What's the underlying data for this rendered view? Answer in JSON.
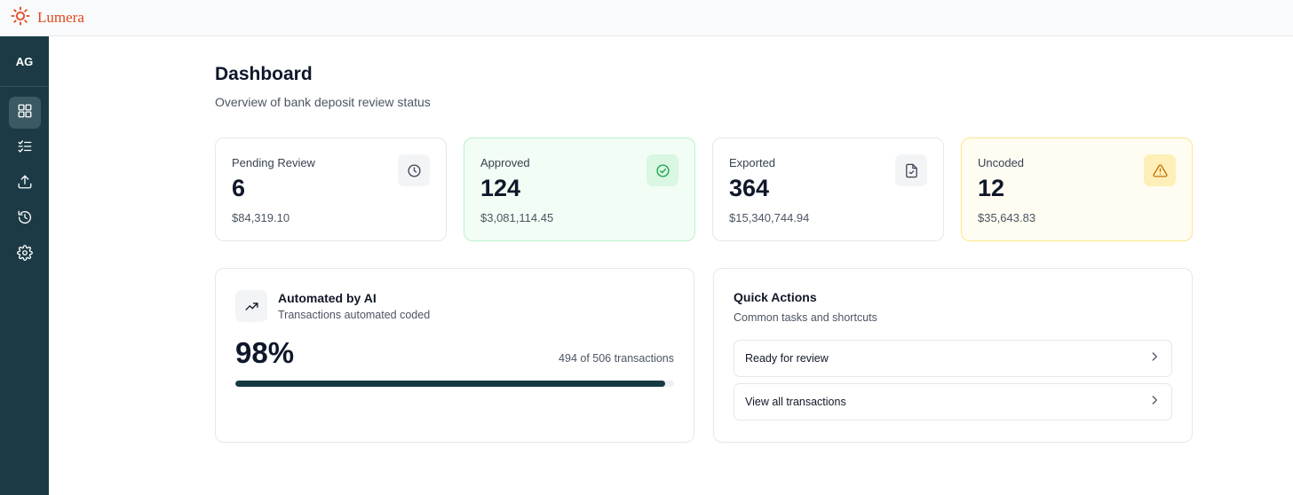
{
  "app": {
    "name": "Lumera",
    "brand_color": "#e0481f",
    "logo_icon": "sun-icon"
  },
  "sidebar": {
    "user_initials": "AG",
    "bg_color": "#1b3a45",
    "items": [
      {
        "icon": "dashboard-icon",
        "active": true
      },
      {
        "icon": "checklist-icon",
        "active": false
      },
      {
        "icon": "upload-icon",
        "active": false
      },
      {
        "icon": "history-icon",
        "active": false
      },
      {
        "icon": "gear-icon",
        "active": false
      }
    ]
  },
  "page": {
    "title": "Dashboard",
    "subtitle": "Overview of bank deposit review status"
  },
  "stats": [
    {
      "label": "Pending Review",
      "value": "6",
      "amount": "$84,319.10",
      "icon": "clock-icon",
      "accent": "#f3f4f6"
    },
    {
      "label": "Approved",
      "value": "124",
      "amount": "$3,081,114.45",
      "icon": "check-circle-icon",
      "accent": "#16a34a"
    },
    {
      "label": "Exported",
      "value": "364",
      "amount": "$15,340,744.94",
      "icon": "file-check-icon",
      "accent": "#6b7280"
    },
    {
      "label": "Uncoded",
      "value": "12",
      "amount": "$35,643.83",
      "icon": "warning-icon",
      "accent": "#d97706"
    }
  ],
  "automation": {
    "title": "Automated by AI",
    "subtitle": "Transactions automated coded",
    "percent": "98%",
    "count_text": "494 of 506 transactions",
    "progress": 0.98,
    "icon": "trending-up-icon"
  },
  "quick_actions": {
    "title": "Quick Actions",
    "subtitle": "Common tasks and shortcuts",
    "items": [
      {
        "label": "Ready for review",
        "icon": "chevron-right-icon"
      },
      {
        "label": "View all transactions",
        "icon": "chevron-right-icon"
      }
    ]
  }
}
